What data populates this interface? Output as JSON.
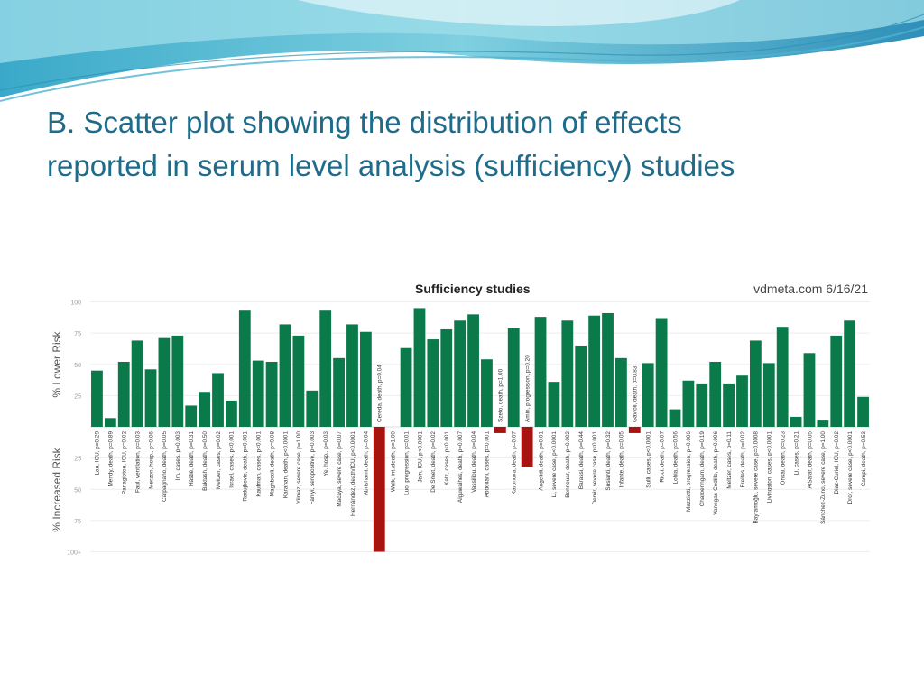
{
  "slide": {
    "title_line1": "B. Scatter plot showing the distribution of effects",
    "title_line2": "reported in serum level analysis (sufficiency) studies"
  },
  "colors": {
    "title": "#1f6b8a",
    "positive_bar": "#0b7a4b",
    "negative_bar": "#a8120f",
    "grid": "#eeeeee",
    "axis_text": "#9a9a9a"
  },
  "chart_data": {
    "type": "bar",
    "title": "Sufficiency studies",
    "source": "vdmeta.com 6/16/21",
    "ylabel_top": "% Lower Risk",
    "ylabel_bottom": "% Increased Risk",
    "yticks_top": [
      "100",
      "75",
      "50",
      "25"
    ],
    "yticks_bottom": [
      "25",
      "50",
      "75",
      "100+"
    ],
    "ylim": [
      -100,
      100
    ],
    "categories": [
      "Lau, ICU, p=0.29",
      "Mendy, death, p=0.89",
      "Panagiotou, ICU, p=0.02",
      "Faul, ventilation, p=0.03",
      "Merzon, hosp., p=0.06",
      "Carpagnano, death, p=0.05",
      "Im, cases, p=0.003",
      "Hastie, death, p=0.31",
      "Baktash, death, p=0.50",
      "Meltzer, cases, p=0.02",
      "Israel, cases, p<0.001",
      "Radujkovic, death, p=0.001",
      "Kaufman, cases, p<0.001",
      "Maghbooli, death, p=0.08",
      "Karahan, death, p<0.0001",
      "Yilmaz, severe case, p=1.00",
      "Faniyi, seropositive, p=0.003",
      "Ye, hosp., p=0.03",
      "Macaya, severe case, p=0.07",
      "Hernández, death/ICU, p<0.0001",
      "Abrishami, death, p=0.04",
      "Cereda, death, p=0.04",
      "Walk, int./death, p=1.00",
      "Luo, progression, p=0.01",
      "Jain, ICU, p<0.0001",
      "De Smet, death, p=0.02",
      "Katz, cases, p<0.001",
      "Alguwaihes, death, p=0.007",
      "Vassiliou, death, p=0.04",
      "Abdollahi, cases, p=0.001",
      "Szeto, death, p=1.00",
      "Karonova, death, p=0.07",
      "Amin, progression, p=0.20",
      "Angelidi, death, p=0.01",
      "Li, severe case, p<0.0001",
      "Bennouar, death, p=0.002",
      "Barassi, death, p=0.44",
      "Demir, severe case, p<0.001",
      "Susianti, death, p=0.32",
      "Infante, death, p=0.05",
      "Gavioli, death, p=0.83",
      "Sulli, cases, p<0.0001",
      "Ricci, death, p=0.07",
      "Lohia, death, p=0.56",
      "Mazziotti, progression, p=0.006",
      "Charoenngam, death, p=0.19",
      "Vanegas-Cedillo, death, p=0.006",
      "Meltzer, cases, p=0.11",
      "Freitas, death, p=0.02",
      "Bayramoğlu, severe case, p=0.0008",
      "Livingston, cases, p<0.0001",
      "Ünsal, death, p=0.23",
      "Li, cases, p=0.21",
      "AlSafar, death, p=0.05",
      "Sánchez-Zuno, severe case, p=1.00",
      "Diaz-Curiel, ICU, p=0.02",
      "Dror, severe case, p<0.0001",
      "Campi, death, p=0.53"
    ],
    "values": [
      45,
      7,
      52,
      69,
      46,
      71,
      73,
      17,
      28,
      43,
      21,
      93,
      53,
      52,
      82,
      73,
      29,
      93,
      55,
      82,
      76,
      -100,
      0,
      63,
      95,
      70,
      78,
      85,
      90,
      54,
      -5,
      79,
      -32,
      88,
      36,
      85,
      65,
      89,
      91,
      55,
      -5,
      51,
      87,
      14,
      37,
      34,
      52,
      34,
      41,
      69,
      51,
      80,
      8,
      59,
      5,
      73,
      85,
      24
    ]
  }
}
